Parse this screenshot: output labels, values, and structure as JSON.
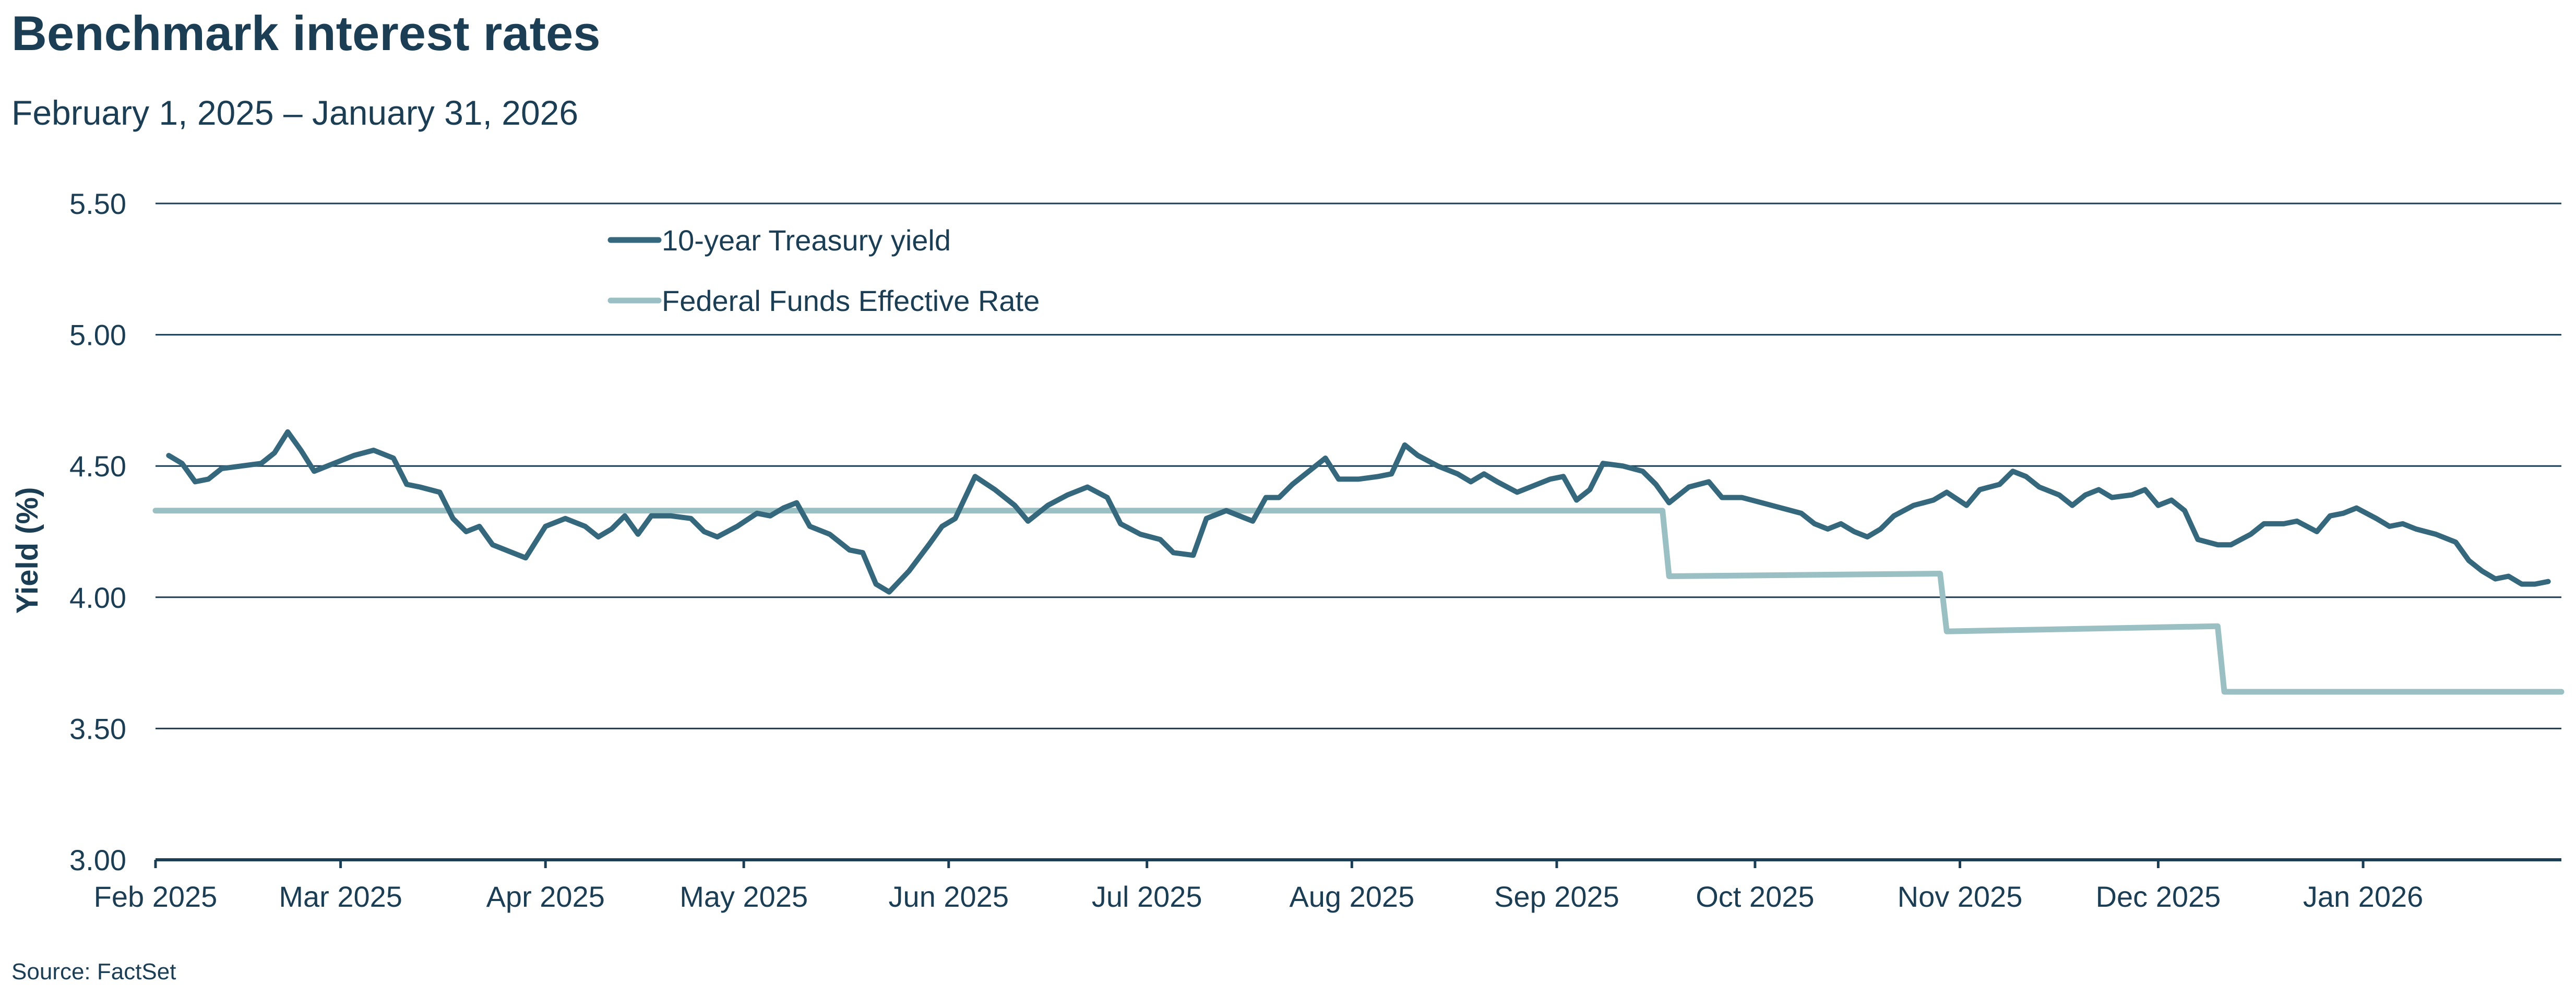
{
  "title": "Benchmark interest rates",
  "subtitle": "February 1, 2025 – January 31, 2026",
  "source": "Source: FactSet",
  "colors": {
    "treasury": "#35687c",
    "fed_funds": "#9bc0c4",
    "text": "#1b3e55",
    "grid": "#1b3e55"
  },
  "chart_data": {
    "type": "line",
    "title": "Benchmark interest rates",
    "subtitle": "February 1, 2025 – January 31, 2026",
    "xlabel": "",
    "ylabel": "Yield (%)",
    "ylim": [
      3.0,
      5.5
    ],
    "xlim": [
      "2025-02-01",
      "2026-01-31"
    ],
    "y_ticks": [
      "3.00",
      "3.50",
      "4.00",
      "4.50",
      "5.00",
      "5.50"
    ],
    "x_tick_labels": [
      {
        "label": "Feb 2025",
        "date": "2025-02-01"
      },
      {
        "label": "Mar 2025",
        "date": "2025-03-01"
      },
      {
        "label": "Apr 2025",
        "date": "2025-04-01"
      },
      {
        "label": "May 2025",
        "date": "2025-05-01"
      },
      {
        "label": "Jun 2025",
        "date": "2025-06-01"
      },
      {
        "label": "Jul 2025",
        "date": "2025-07-01"
      },
      {
        "label": "Aug 2025",
        "date": "2025-08-01"
      },
      {
        "label": "Sep 2025",
        "date": "2025-09-01"
      },
      {
        "label": "Oct 2025",
        "date": "2025-10-01"
      },
      {
        "label": "Nov 2025",
        "date": "2025-11-01"
      },
      {
        "label": "Dec 2025",
        "date": "2025-12-01"
      },
      {
        "label": "Jan 2026",
        "date": "2026-01-01"
      }
    ],
    "grid": true,
    "legend_position": "top-left",
    "series": [
      {
        "name": "10-year Treasury yield",
        "color": "#35687c",
        "points": [
          [
            "2025-02-03",
            4.54
          ],
          [
            "2025-02-05",
            4.51
          ],
          [
            "2025-02-07",
            4.44
          ],
          [
            "2025-02-09",
            4.45
          ],
          [
            "2025-02-11",
            4.49
          ],
          [
            "2025-02-14",
            4.5
          ],
          [
            "2025-02-17",
            4.51
          ],
          [
            "2025-02-19",
            4.55
          ],
          [
            "2025-02-21",
            4.63
          ],
          [
            "2025-02-23",
            4.56
          ],
          [
            "2025-02-25",
            4.48
          ],
          [
            "2025-02-28",
            4.51
          ],
          [
            "2025-03-03",
            4.54
          ],
          [
            "2025-03-06",
            4.56
          ],
          [
            "2025-03-09",
            4.53
          ],
          [
            "2025-03-11",
            4.43
          ],
          [
            "2025-03-13",
            4.42
          ],
          [
            "2025-03-16",
            4.4
          ],
          [
            "2025-03-18",
            4.3
          ],
          [
            "2025-03-20",
            4.25
          ],
          [
            "2025-03-22",
            4.27
          ],
          [
            "2025-03-24",
            4.2
          ],
          [
            "2025-03-27",
            4.17
          ],
          [
            "2025-03-29",
            4.15
          ],
          [
            "2025-04-01",
            4.27
          ],
          [
            "2025-04-04",
            4.3
          ],
          [
            "2025-04-07",
            4.27
          ],
          [
            "2025-04-09",
            4.23
          ],
          [
            "2025-04-11",
            4.26
          ],
          [
            "2025-04-13",
            4.31
          ],
          [
            "2025-04-15",
            4.24
          ],
          [
            "2025-04-17",
            4.31
          ],
          [
            "2025-04-20",
            4.31
          ],
          [
            "2025-04-23",
            4.3
          ],
          [
            "2025-04-25",
            4.25
          ],
          [
            "2025-04-27",
            4.23
          ],
          [
            "2025-04-30",
            4.27
          ],
          [
            "2025-05-03",
            4.32
          ],
          [
            "2025-05-05",
            4.31
          ],
          [
            "2025-05-07",
            4.34
          ],
          [
            "2025-05-09",
            4.36
          ],
          [
            "2025-05-11",
            4.27
          ],
          [
            "2025-05-14",
            4.24
          ],
          [
            "2025-05-17",
            4.18
          ],
          [
            "2025-05-19",
            4.17
          ],
          [
            "2025-05-21",
            4.05
          ],
          [
            "2025-05-23",
            4.02
          ],
          [
            "2025-05-26",
            4.1
          ],
          [
            "2025-05-29",
            4.2
          ],
          [
            "2025-05-31",
            4.27
          ],
          [
            "2025-06-02",
            4.3
          ],
          [
            "2025-06-05",
            4.46
          ],
          [
            "2025-06-08",
            4.41
          ],
          [
            "2025-06-11",
            4.35
          ],
          [
            "2025-06-13",
            4.29
          ],
          [
            "2025-06-16",
            4.35
          ],
          [
            "2025-06-19",
            4.39
          ],
          [
            "2025-06-22",
            4.42
          ],
          [
            "2025-06-25",
            4.38
          ],
          [
            "2025-06-27",
            4.28
          ],
          [
            "2025-06-30",
            4.24
          ],
          [
            "2025-07-03",
            4.22
          ],
          [
            "2025-07-05",
            4.17
          ],
          [
            "2025-07-08",
            4.16
          ],
          [
            "2025-07-10",
            4.3
          ],
          [
            "2025-07-13",
            4.33
          ],
          [
            "2025-07-15",
            4.31
          ],
          [
            "2025-07-17",
            4.29
          ],
          [
            "2025-07-19",
            4.38
          ],
          [
            "2025-07-21",
            4.38
          ],
          [
            "2025-07-23",
            4.43
          ],
          [
            "2025-07-25",
            4.47
          ],
          [
            "2025-07-28",
            4.53
          ],
          [
            "2025-07-30",
            4.45
          ],
          [
            "2025-08-02",
            4.45
          ],
          [
            "2025-08-05",
            4.46
          ],
          [
            "2025-08-07",
            4.47
          ],
          [
            "2025-08-09",
            4.58
          ],
          [
            "2025-08-11",
            4.54
          ],
          [
            "2025-08-14",
            4.5
          ],
          [
            "2025-08-17",
            4.47
          ],
          [
            "2025-08-19",
            4.44
          ],
          [
            "2025-08-21",
            4.47
          ],
          [
            "2025-08-23",
            4.44
          ],
          [
            "2025-08-26",
            4.4
          ],
          [
            "2025-08-28",
            4.42
          ],
          [
            "2025-08-31",
            4.45
          ],
          [
            "2025-09-02",
            4.46
          ],
          [
            "2025-09-04",
            4.37
          ],
          [
            "2025-09-06",
            4.41
          ],
          [
            "2025-09-08",
            4.51
          ],
          [
            "2025-09-11",
            4.5
          ],
          [
            "2025-09-14",
            4.48
          ],
          [
            "2025-09-16",
            4.43
          ],
          [
            "2025-09-18",
            4.36
          ],
          [
            "2025-09-21",
            4.42
          ],
          [
            "2025-09-24",
            4.44
          ],
          [
            "2025-09-26",
            4.38
          ],
          [
            "2025-09-29",
            4.38
          ],
          [
            "2025-10-02",
            4.36
          ],
          [
            "2025-10-05",
            4.34
          ],
          [
            "2025-10-08",
            4.32
          ],
          [
            "2025-10-10",
            4.28
          ],
          [
            "2025-10-12",
            4.26
          ],
          [
            "2025-10-14",
            4.28
          ],
          [
            "2025-10-16",
            4.25
          ],
          [
            "2025-10-18",
            4.23
          ],
          [
            "2025-10-20",
            4.26
          ],
          [
            "2025-10-22",
            4.31
          ],
          [
            "2025-10-25",
            4.35
          ],
          [
            "2025-10-28",
            4.37
          ],
          [
            "2025-10-30",
            4.4
          ],
          [
            "2025-11-02",
            4.35
          ],
          [
            "2025-11-04",
            4.41
          ],
          [
            "2025-11-07",
            4.43
          ],
          [
            "2025-11-09",
            4.48
          ],
          [
            "2025-11-11",
            4.46
          ],
          [
            "2025-11-13",
            4.42
          ],
          [
            "2025-11-16",
            4.39
          ],
          [
            "2025-11-18",
            4.35
          ],
          [
            "2025-11-20",
            4.39
          ],
          [
            "2025-11-22",
            4.41
          ],
          [
            "2025-11-24",
            4.38
          ],
          [
            "2025-11-27",
            4.39
          ],
          [
            "2025-11-29",
            4.41
          ],
          [
            "2025-12-01",
            4.35
          ],
          [
            "2025-12-03",
            4.37
          ],
          [
            "2025-12-05",
            4.33
          ],
          [
            "2025-12-07",
            4.22
          ],
          [
            "2025-12-10",
            4.2
          ],
          [
            "2025-12-12",
            4.2
          ],
          [
            "2025-12-15",
            4.24
          ],
          [
            "2025-12-17",
            4.28
          ],
          [
            "2025-12-20",
            4.28
          ],
          [
            "2025-12-22",
            4.29
          ],
          [
            "2025-12-25",
            4.25
          ],
          [
            "2025-12-27",
            4.31
          ],
          [
            "2025-12-29",
            4.32
          ],
          [
            "2025-12-31",
            4.34
          ],
          [
            "2026-01-03",
            4.3
          ],
          [
            "2026-01-05",
            4.27
          ],
          [
            "2026-01-07",
            4.28
          ],
          [
            "2026-01-09",
            4.26
          ],
          [
            "2026-01-12",
            4.24
          ],
          [
            "2026-01-15",
            4.21
          ],
          [
            "2026-01-17",
            4.14
          ],
          [
            "2026-01-19",
            4.1
          ],
          [
            "2026-01-21",
            4.07
          ],
          [
            "2026-01-23",
            4.08
          ],
          [
            "2026-01-25",
            4.05
          ],
          [
            "2026-01-27",
            4.05
          ],
          [
            "2026-01-29",
            4.06
          ]
        ]
      },
      {
        "name": "Federal Funds Effective Rate",
        "color": "#9bc0c4",
        "points": [
          [
            "2025-02-01",
            4.33
          ],
          [
            "2025-09-17",
            4.33
          ],
          [
            "2025-09-18",
            4.08
          ],
          [
            "2025-10-29",
            4.09
          ],
          [
            "2025-10-30",
            3.87
          ],
          [
            "2025-12-10",
            3.89
          ],
          [
            "2025-12-11",
            3.64
          ],
          [
            "2026-01-31",
            3.64
          ]
        ]
      }
    ]
  }
}
